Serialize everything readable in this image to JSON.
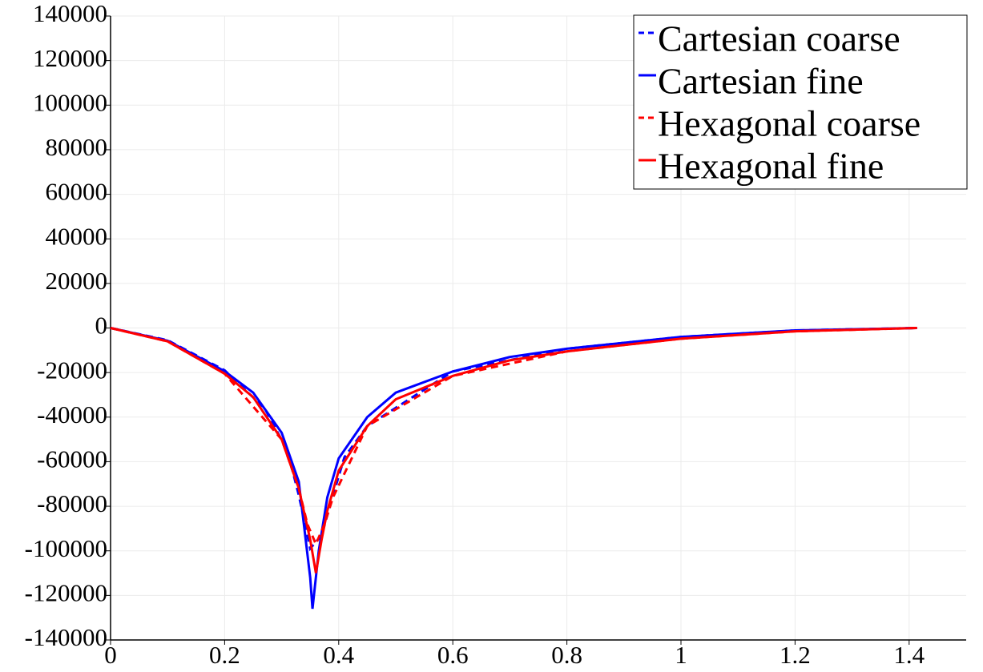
{
  "chart_data": {
    "type": "line",
    "xlim": [
      0,
      1.5
    ],
    "ylim": [
      -140000,
      140000
    ],
    "xticks": [
      0,
      0.2,
      0.4,
      0.6,
      0.8,
      1,
      1.2,
      1.4
    ],
    "yticks": [
      -140000,
      -120000,
      -100000,
      -80000,
      -60000,
      -40000,
      -20000,
      0,
      20000,
      40000,
      60000,
      80000,
      100000,
      120000,
      140000
    ],
    "grid": true,
    "legend": "upper right",
    "series": [
      {
        "name": "Cartesian coarse",
        "color": "#0000ff",
        "dash": true,
        "x": [
          0,
          0.1,
          0.2,
          0.27,
          0.31,
          0.33,
          0.35,
          0.37,
          0.39,
          0.41,
          0.45,
          0.6,
          0.8,
          1.0,
          1.2,
          1.414
        ],
        "values": [
          0,
          -5500,
          -19000,
          -36000,
          -55000,
          -75000,
          -99000,
          -93000,
          -75000,
          -58000,
          -44000,
          -19500,
          -9300,
          -4000,
          -1100,
          0
        ]
      },
      {
        "name": "Cartesian fine",
        "color": "#0000ff",
        "dash": false,
        "x": [
          0,
          0.1,
          0.2,
          0.25,
          0.3,
          0.33,
          0.35,
          0.354,
          0.365,
          0.38,
          0.4,
          0.45,
          0.5,
          0.6,
          0.7,
          0.8,
          1.0,
          1.2,
          1.414
        ],
        "values": [
          0,
          -5700,
          -19400,
          -29000,
          -47000,
          -69000,
          -112000,
          -126000,
          -100000,
          -76000,
          -58500,
          -40000,
          -29000,
          -19500,
          -13000,
          -9300,
          -4000,
          -1100,
          0
        ]
      },
      {
        "name": "Hexagonal coarse",
        "color": "#ff0000",
        "dash": true,
        "x": [
          0,
          0.1,
          0.2,
          0.3,
          0.33,
          0.345,
          0.36,
          0.375,
          0.39,
          0.45,
          0.6,
          0.8,
          1.0,
          1.2,
          1.414
        ],
        "values": [
          0,
          -6000,
          -20500,
          -50000,
          -72000,
          -88000,
          -97000,
          -88000,
          -76000,
          -44000,
          -21500,
          -10500,
          -4800,
          -1500,
          0
        ]
      },
      {
        "name": "Hexagonal fine",
        "color": "#ff0000",
        "dash": false,
        "x": [
          0,
          0.1,
          0.2,
          0.25,
          0.3,
          0.33,
          0.35,
          0.36,
          0.37,
          0.38,
          0.4,
          0.45,
          0.5,
          0.6,
          0.7,
          0.8,
          1.0,
          1.2,
          1.414
        ],
        "values": [
          0,
          -6000,
          -20500,
          -31000,
          -50000,
          -72000,
          -95000,
          -110000,
          -95000,
          -82000,
          -64000,
          -44000,
          -32000,
          -21500,
          -14500,
          -10500,
          -4800,
          -1500,
          0
        ]
      }
    ]
  }
}
